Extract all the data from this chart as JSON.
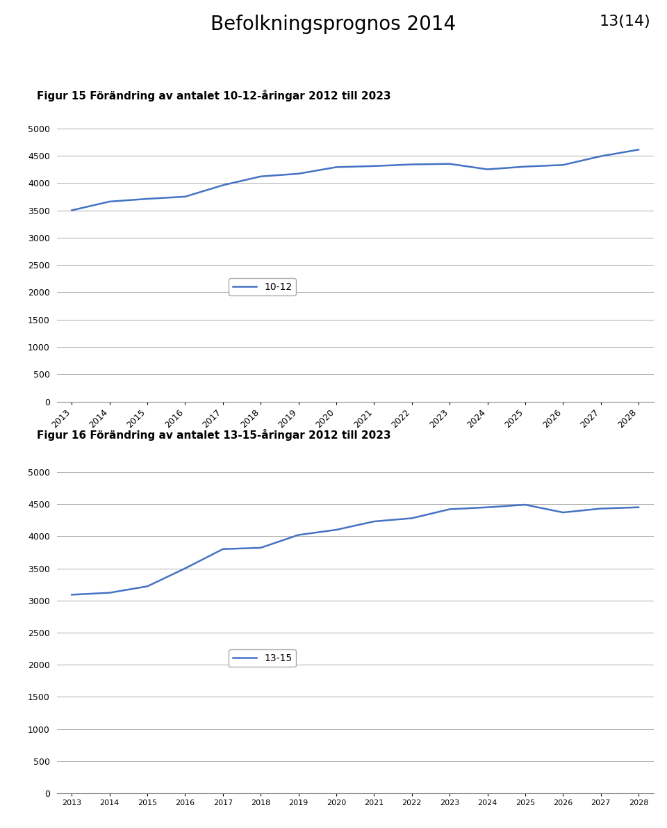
{
  "page_title": "Befolkningsprognos 2014",
  "page_number": "13(14)",
  "fig1_title": "Figur 15 Förändring av antalet 10-12-åringar 2012 till 2023",
  "fig2_title": "Figur 16 Förändring av antalet 13-15-åringar 2012 till 2023",
  "years": [
    2013,
    2014,
    2015,
    2016,
    2017,
    2018,
    2019,
    2020,
    2021,
    2022,
    2023,
    2024,
    2025,
    2026,
    2027,
    2028
  ],
  "data_10_12": [
    3500,
    3660,
    3710,
    3750,
    3960,
    4120,
    4170,
    4290,
    4310,
    4340,
    4350,
    4250,
    4300,
    4330,
    4490,
    4610
  ],
  "data_13_15": [
    3090,
    3120,
    3220,
    3500,
    3800,
    3820,
    4020,
    4100,
    4230,
    4280,
    4420,
    4450,
    4490,
    4370,
    4430,
    4450
  ],
  "line_color": "#4472C4",
  "legend_label_1": "10-12",
  "legend_label_2": "13-15",
  "ylim": [
    0,
    5000
  ],
  "yticks": [
    0,
    500,
    1000,
    1500,
    2000,
    2500,
    3000,
    3500,
    4000,
    4500,
    5000
  ],
  "grid_color": "#AAAAAA",
  "bg_color": "#FFFFFF",
  "title_fontsize": 20,
  "pagenumber_fontsize": 16,
  "fig_label_fontsize": 11,
  "axis_fontsize": 9
}
